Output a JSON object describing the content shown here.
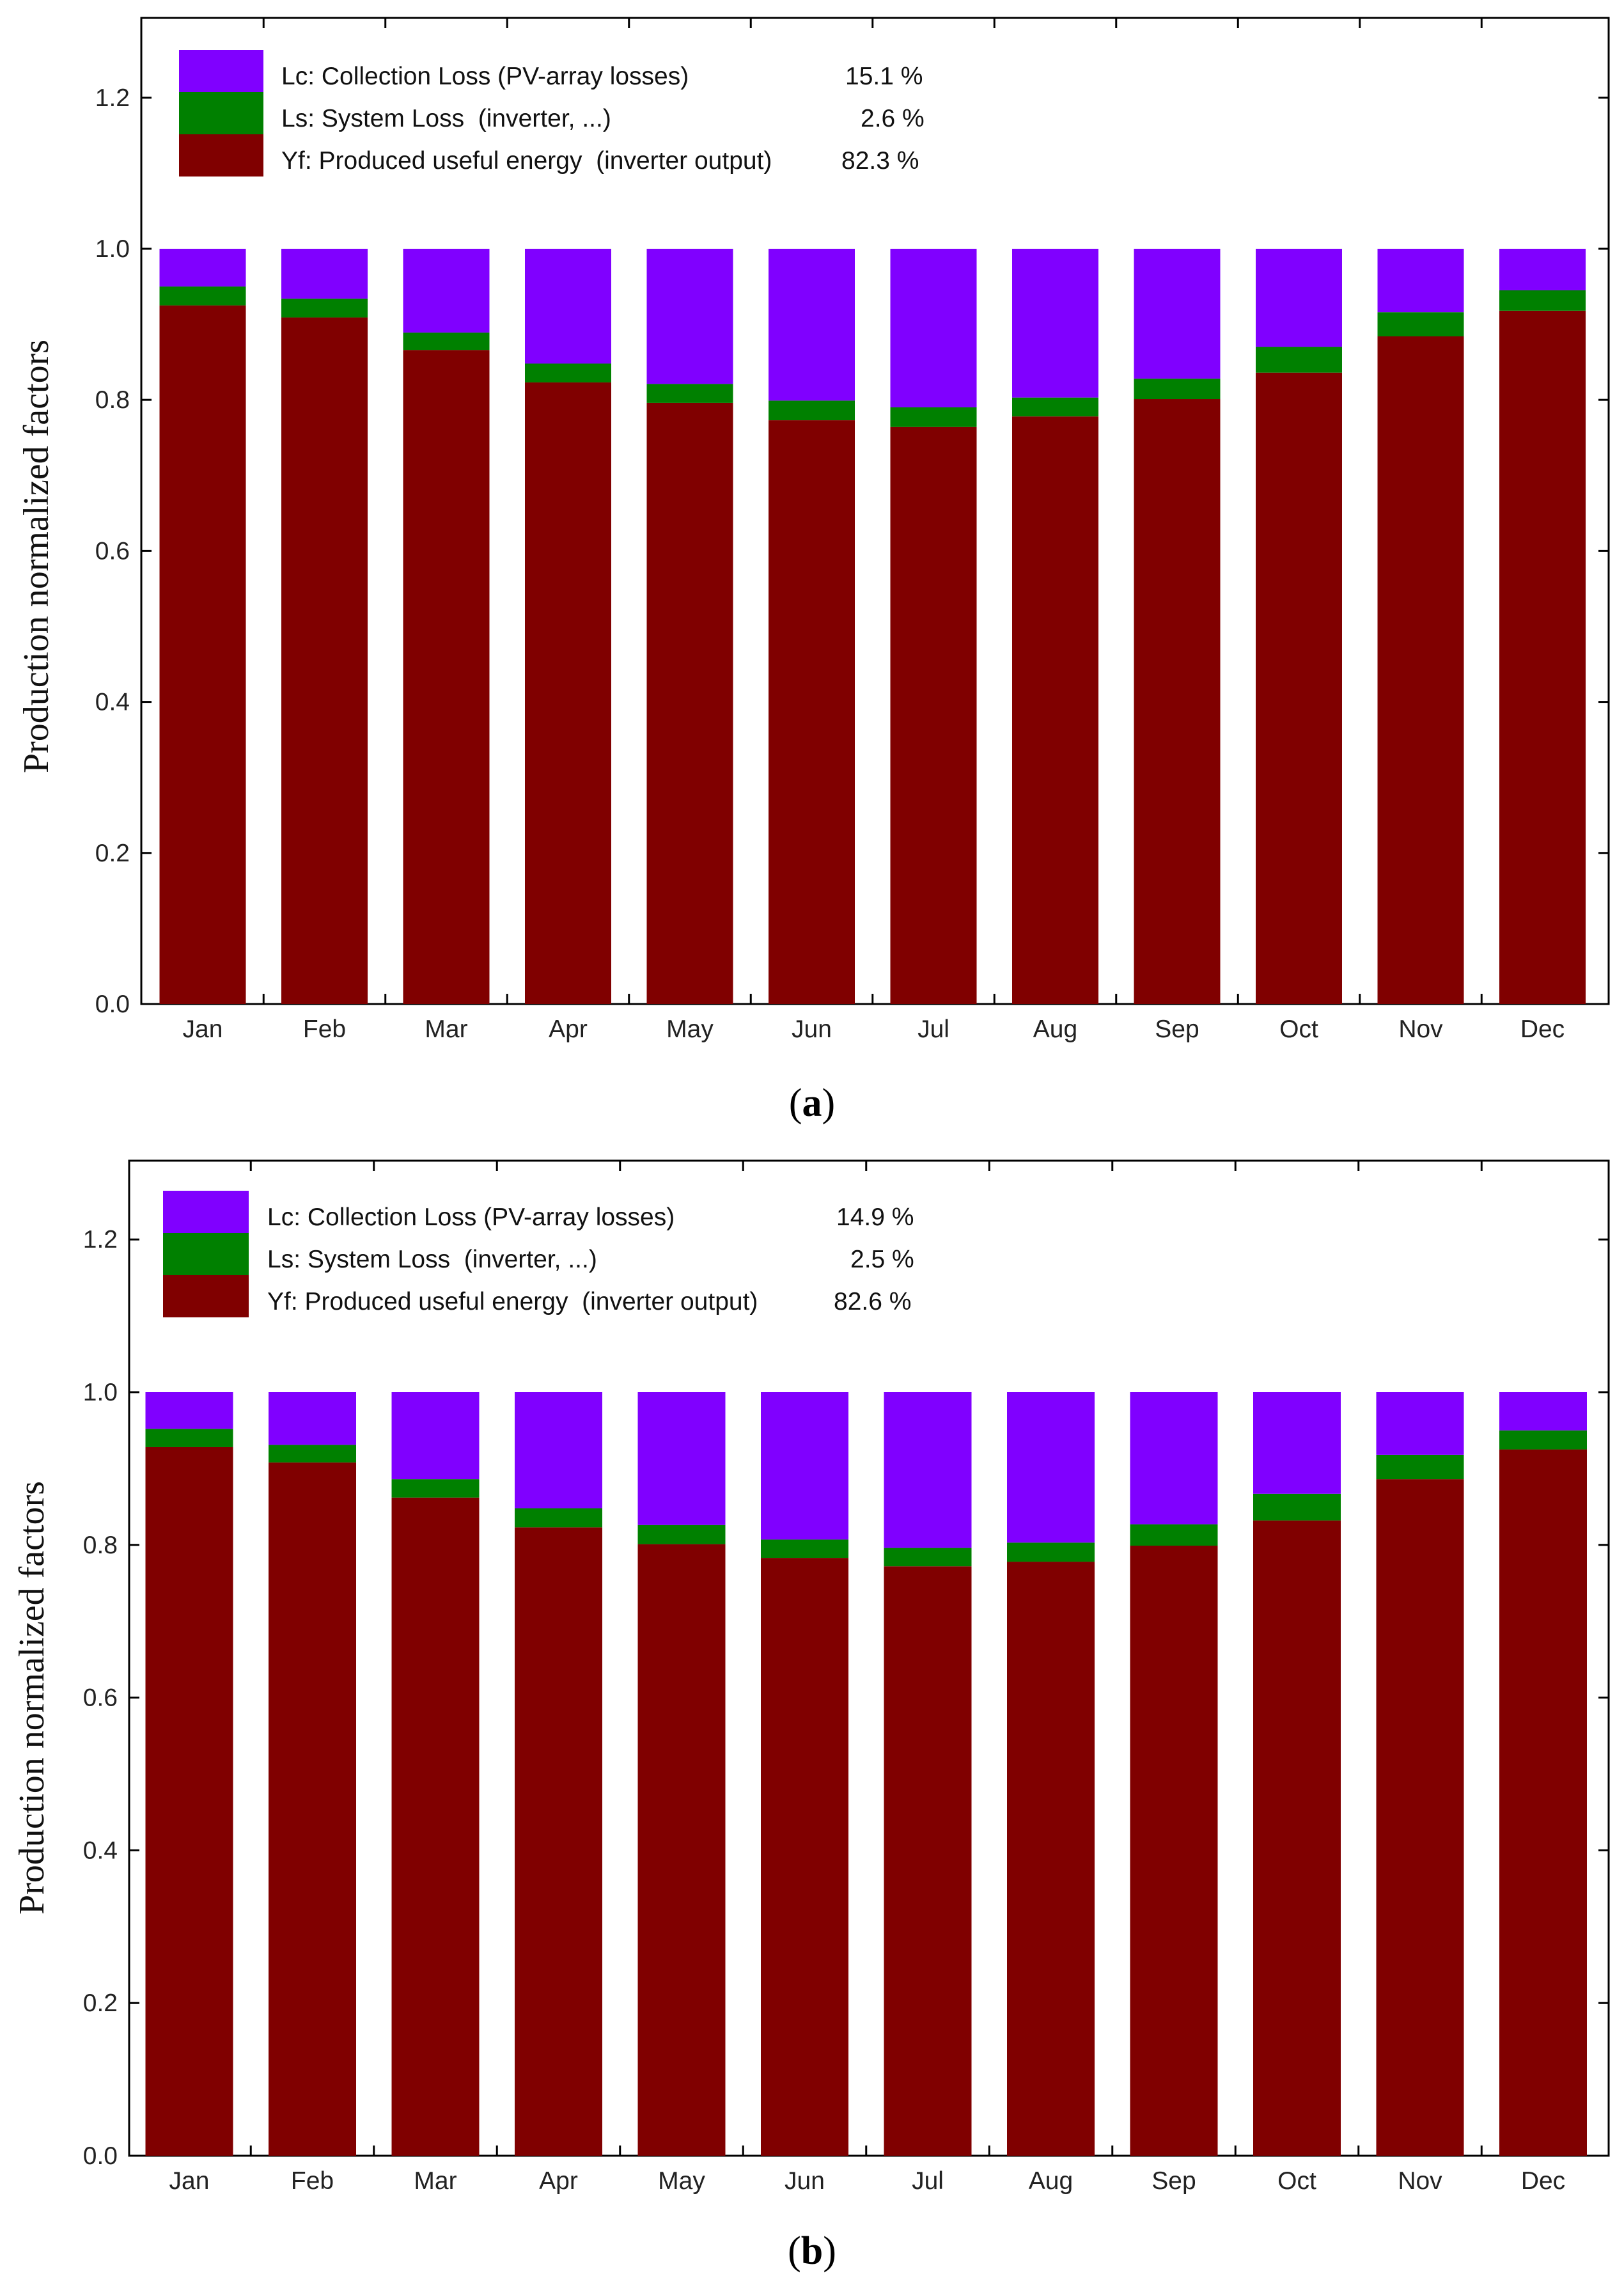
{
  "colors": {
    "collection": "#8000ff",
    "system": "#008000",
    "yield": "#800000"
  },
  "chart_data": [
    {
      "type": "bar",
      "stacked": true,
      "panel_label": "a",
      "ylabel": "Production normalized factors",
      "ylim": [
        0,
        1.3
      ],
      "yticks": [
        "0.0",
        "0.2",
        "0.4",
        "0.6",
        "0.8",
        "1.0",
        "1.2"
      ],
      "categories": [
        "Jan",
        "Feb",
        "Mar",
        "Apr",
        "May",
        "Jun",
        "Jul",
        "Aug",
        "Sep",
        "Oct",
        "Nov",
        "Dec"
      ],
      "legend": [
        {
          "label": "Lc: Collection Loss (PV-array losses)",
          "value": "15.1 %"
        },
        {
          "label": "Ls: System Loss  (inverter, ...)",
          "value": "2.6 %"
        },
        {
          "label": "Yf: Produced useful energy  (inverter output)",
          "value": "82.3 %"
        }
      ],
      "series": [
        {
          "name": "Yf",
          "values": [
            0.925,
            0.909,
            0.866,
            0.823,
            0.796,
            0.773,
            0.764,
            0.778,
            0.801,
            0.836,
            0.884,
            0.918
          ]
        },
        {
          "name": "Ls",
          "values": [
            0.025,
            0.025,
            0.023,
            0.025,
            0.025,
            0.026,
            0.026,
            0.025,
            0.027,
            0.034,
            0.032,
            0.027
          ]
        },
        {
          "name": "Lc",
          "values": [
            0.05,
            0.066,
            0.111,
            0.152,
            0.179,
            0.201,
            0.21,
            0.197,
            0.172,
            0.13,
            0.084,
            0.055
          ]
        }
      ]
    },
    {
      "type": "bar",
      "stacked": true,
      "panel_label": "b",
      "ylabel": "Production normalized factors",
      "ylim": [
        0,
        1.3
      ],
      "yticks": [
        "0.0",
        "0.2",
        "0.4",
        "0.6",
        "0.8",
        "1.0",
        "1.2"
      ],
      "categories": [
        "Jan",
        "Feb",
        "Mar",
        "Apr",
        "May",
        "Jun",
        "Jul",
        "Aug",
        "Sep",
        "Oct",
        "Nov",
        "Dec"
      ],
      "legend": [
        {
          "label": "Lc: Collection Loss (PV-array losses)",
          "value": "14.9 %"
        },
        {
          "label": "Ls: System Loss  (inverter, ...)",
          "value": "2.5 %"
        },
        {
          "label": "Yf: Produced useful energy  (inverter output)",
          "value": "82.6 %"
        }
      ],
      "series": [
        {
          "name": "Yf",
          "values": [
            0.928,
            0.908,
            0.862,
            0.823,
            0.801,
            0.783,
            0.772,
            0.778,
            0.799,
            0.832,
            0.886,
            0.925
          ]
        },
        {
          "name": "Ls",
          "values": [
            0.024,
            0.023,
            0.024,
            0.025,
            0.025,
            0.024,
            0.024,
            0.025,
            0.028,
            0.035,
            0.032,
            0.025
          ]
        },
        {
          "name": "Lc",
          "values": [
            0.048,
            0.069,
            0.114,
            0.152,
            0.174,
            0.193,
            0.204,
            0.197,
            0.173,
            0.133,
            0.082,
            0.05
          ]
        }
      ]
    }
  ]
}
